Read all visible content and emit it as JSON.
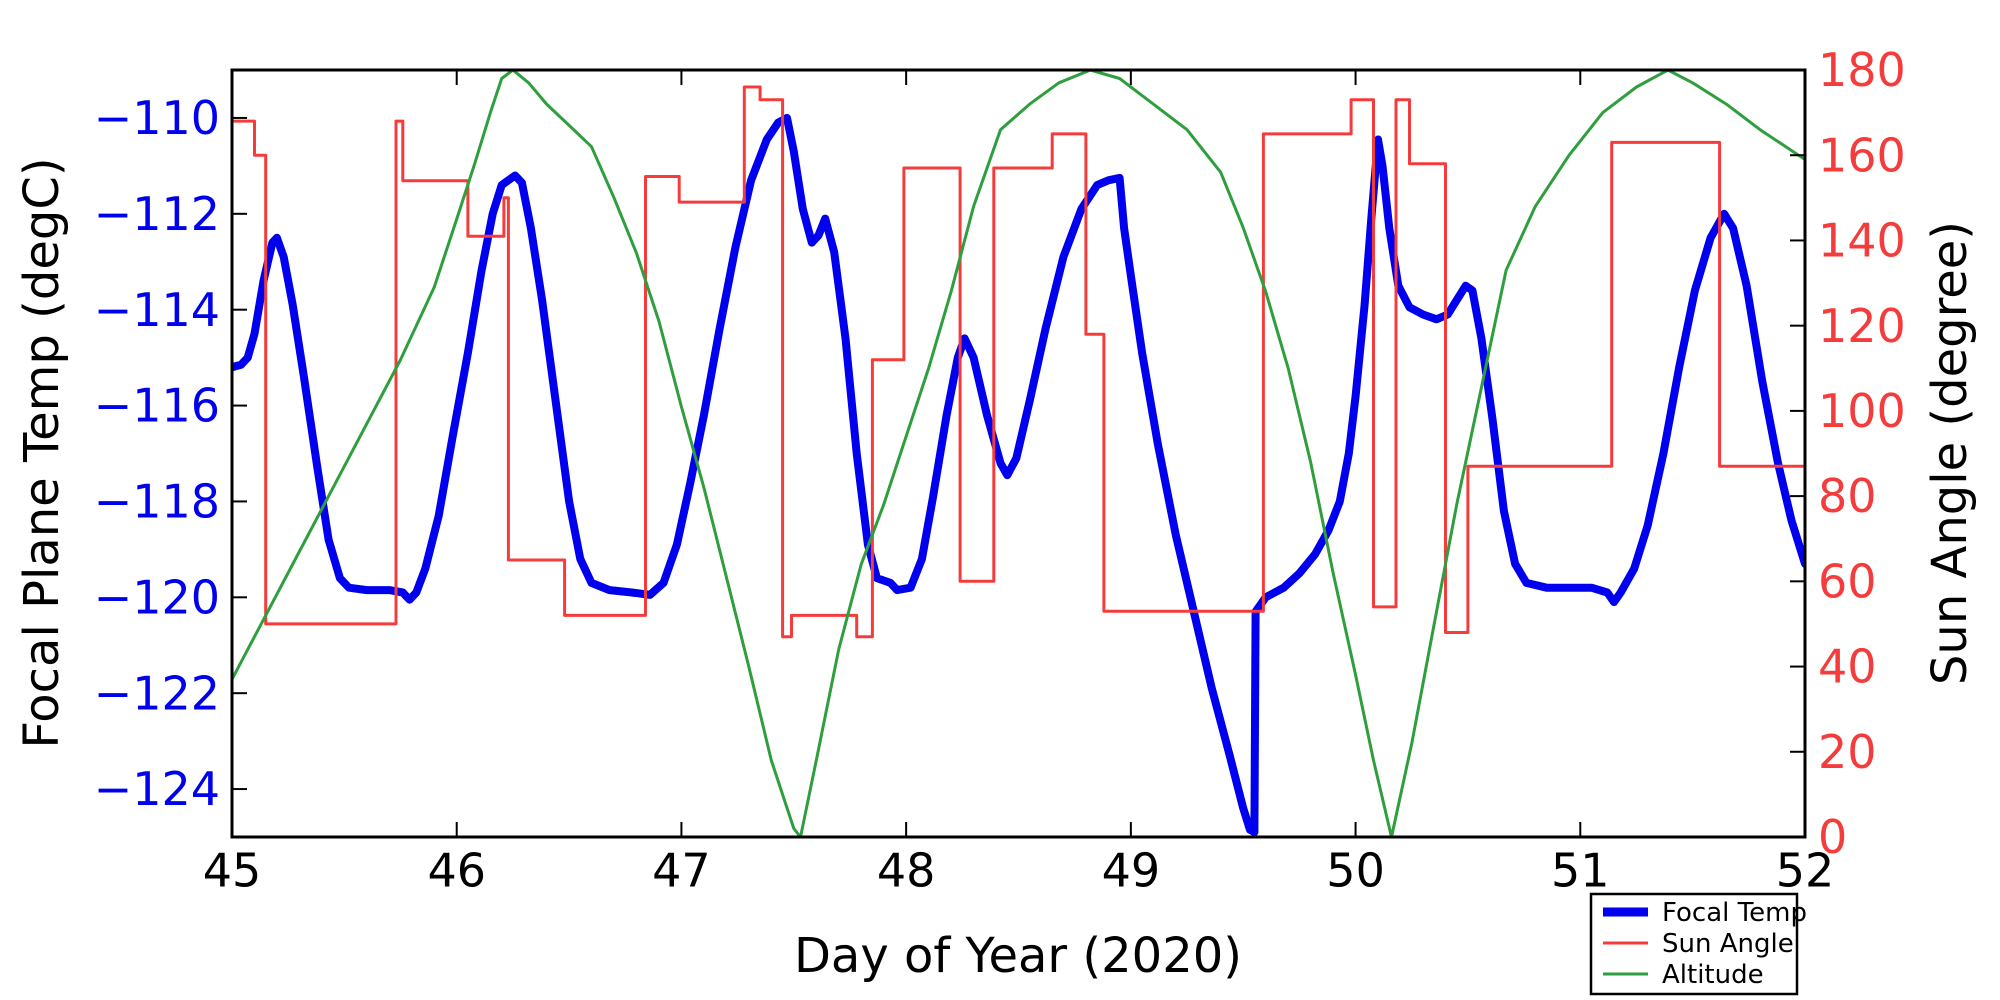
{
  "figure": {
    "background": "#ffffff"
  },
  "colors": {
    "focal_temp": "#0000ee",
    "sun_angle": "#f53c3c",
    "altitude": "#2f9e3e",
    "left_tick_labels": "#0000ee",
    "right_tick_labels": "#f53c3c",
    "axis_text": "#000000",
    "frame": "#000000"
  },
  "legend": {
    "position": "lower-right-outside",
    "border_color": "#000000",
    "background": "#ffffff",
    "items": [
      {
        "label": "Focal Temp",
        "color": "#0000ee",
        "sample_width": 9
      },
      {
        "label": "Sun Angle",
        "color": "#f53c3c",
        "sample_width": 3
      },
      {
        "label": "Altitude",
        "color": "#2f9e3e",
        "sample_width": 3
      }
    ]
  },
  "chart_data": {
    "type": "line",
    "title": "",
    "xlabel": "Day of Year (2020)",
    "ylabel_left": "Focal Plane Temp (degC)",
    "ylabel_right": "Sun Angle (degree)",
    "xlim": [
      45,
      52
    ],
    "ylim_left": [
      -125,
      -109
    ],
    "ylim_right": [
      0,
      180
    ],
    "grid": false,
    "xticks": [
      45,
      46,
      47,
      48,
      49,
      50,
      51,
      52
    ],
    "xtick_labels": [
      "45",
      "46",
      "47",
      "48",
      "49",
      "50",
      "51",
      "52"
    ],
    "yticks_left": [
      -110,
      -112,
      -114,
      -116,
      -118,
      -120,
      -122,
      -124
    ],
    "ytick_left_labels": [
      "−110",
      "−112",
      "−114",
      "−116",
      "−118",
      "−120",
      "−122",
      "−124"
    ],
    "yticks_right": [
      0,
      20,
      40,
      60,
      80,
      100,
      120,
      140,
      160,
      180
    ],
    "ytick_right_labels": [
      "0",
      "20",
      "40",
      "60",
      "80",
      "100",
      "120",
      "140",
      "160",
      "180"
    ],
    "series": [
      {
        "name": "Focal Temp",
        "axis": "left",
        "draw": "line",
        "color": "#0000ee",
        "width": 8,
        "points": [
          [
            45.0,
            -115.2
          ],
          [
            45.04,
            -115.15
          ],
          [
            45.07,
            -115.0
          ],
          [
            45.1,
            -114.5
          ],
          [
            45.14,
            -113.4
          ],
          [
            45.18,
            -112.6
          ],
          [
            45.2,
            -112.5
          ],
          [
            45.23,
            -112.9
          ],
          [
            45.27,
            -113.9
          ],
          [
            45.32,
            -115.4
          ],
          [
            45.38,
            -117.3
          ],
          [
            45.43,
            -118.8
          ],
          [
            45.48,
            -119.6
          ],
          [
            45.52,
            -119.8
          ],
          [
            45.6,
            -119.85
          ],
          [
            45.7,
            -119.85
          ],
          [
            45.76,
            -119.9
          ],
          [
            45.79,
            -120.05
          ],
          [
            45.82,
            -119.9
          ],
          [
            45.86,
            -119.4
          ],
          [
            45.92,
            -118.3
          ],
          [
            45.98,
            -116.7
          ],
          [
            46.05,
            -114.9
          ],
          [
            46.11,
            -113.2
          ],
          [
            46.16,
            -112.0
          ],
          [
            46.2,
            -111.4
          ],
          [
            46.23,
            -111.3
          ],
          [
            46.26,
            -111.2
          ],
          [
            46.29,
            -111.35
          ],
          [
            46.33,
            -112.3
          ],
          [
            46.38,
            -113.8
          ],
          [
            46.44,
            -115.9
          ],
          [
            46.5,
            -118.0
          ],
          [
            46.55,
            -119.2
          ],
          [
            46.6,
            -119.7
          ],
          [
            46.68,
            -119.85
          ],
          [
            46.78,
            -119.9
          ],
          [
            46.86,
            -119.95
          ],
          [
            46.92,
            -119.7
          ],
          [
            46.98,
            -118.9
          ],
          [
            47.04,
            -117.6
          ],
          [
            47.1,
            -116.2
          ],
          [
            47.17,
            -114.4
          ],
          [
            47.24,
            -112.7
          ],
          [
            47.31,
            -111.3
          ],
          [
            47.38,
            -110.45
          ],
          [
            47.43,
            -110.1
          ],
          [
            47.47,
            -110.0
          ],
          [
            47.5,
            -110.7
          ],
          [
            47.54,
            -111.9
          ],
          [
            47.58,
            -112.6
          ],
          [
            47.61,
            -112.45
          ],
          [
            47.64,
            -112.1
          ],
          [
            47.68,
            -112.8
          ],
          [
            47.73,
            -114.6
          ],
          [
            47.78,
            -117.0
          ],
          [
            47.83,
            -118.9
          ],
          [
            47.87,
            -119.6
          ],
          [
            47.93,
            -119.7
          ],
          [
            47.96,
            -119.85
          ],
          [
            48.02,
            -119.8
          ],
          [
            48.07,
            -119.2
          ],
          [
            48.12,
            -117.9
          ],
          [
            48.18,
            -116.2
          ],
          [
            48.23,
            -115.0
          ],
          [
            48.26,
            -114.6
          ],
          [
            48.3,
            -115.0
          ],
          [
            48.36,
            -116.2
          ],
          [
            48.42,
            -117.2
          ],
          [
            48.45,
            -117.45
          ],
          [
            48.49,
            -117.1
          ],
          [
            48.55,
            -115.9
          ],
          [
            48.62,
            -114.4
          ],
          [
            48.7,
            -112.9
          ],
          [
            48.78,
            -111.9
          ],
          [
            48.85,
            -111.4
          ],
          [
            48.9,
            -111.3
          ],
          [
            48.95,
            -111.25
          ],
          [
            48.97,
            -112.3
          ],
          [
            49.0,
            -113.3
          ],
          [
            49.05,
            -114.9
          ],
          [
            49.12,
            -116.8
          ],
          [
            49.2,
            -118.7
          ],
          [
            49.28,
            -120.3
          ],
          [
            49.36,
            -121.9
          ],
          [
            49.44,
            -123.3
          ],
          [
            49.5,
            -124.4
          ],
          [
            49.53,
            -124.85
          ],
          [
            49.55,
            -124.9
          ],
          [
            49.555,
            -120.3
          ],
          [
            49.6,
            -120.0
          ],
          [
            49.68,
            -119.8
          ],
          [
            49.75,
            -119.5
          ],
          [
            49.82,
            -119.1
          ],
          [
            49.88,
            -118.6
          ],
          [
            49.93,
            -118.0
          ],
          [
            49.97,
            -117.0
          ],
          [
            50.0,
            -115.8
          ],
          [
            50.04,
            -113.9
          ],
          [
            50.07,
            -112.1
          ],
          [
            50.1,
            -110.45
          ],
          [
            50.12,
            -111.0
          ],
          [
            50.15,
            -112.3
          ],
          [
            50.19,
            -113.5
          ],
          [
            50.24,
            -113.95
          ],
          [
            50.3,
            -114.1
          ],
          [
            50.36,
            -114.2
          ],
          [
            50.41,
            -114.1
          ],
          [
            50.45,
            -113.8
          ],
          [
            50.49,
            -113.5
          ],
          [
            50.52,
            -113.6
          ],
          [
            50.56,
            -114.6
          ],
          [
            50.61,
            -116.3
          ],
          [
            50.66,
            -118.2
          ],
          [
            50.71,
            -119.3
          ],
          [
            50.76,
            -119.7
          ],
          [
            50.85,
            -119.8
          ],
          [
            50.95,
            -119.8
          ],
          [
            51.05,
            -119.8
          ],
          [
            51.12,
            -119.9
          ],
          [
            51.15,
            -120.1
          ],
          [
            51.18,
            -119.9
          ],
          [
            51.24,
            -119.4
          ],
          [
            51.3,
            -118.5
          ],
          [
            51.37,
            -117.0
          ],
          [
            51.44,
            -115.2
          ],
          [
            51.51,
            -113.6
          ],
          [
            51.58,
            -112.5
          ],
          [
            51.64,
            -112.0
          ],
          [
            51.68,
            -112.3
          ],
          [
            51.74,
            -113.5
          ],
          [
            51.81,
            -115.5
          ],
          [
            51.88,
            -117.2
          ],
          [
            51.94,
            -118.4
          ],
          [
            52.0,
            -119.3
          ]
        ]
      },
      {
        "name": "Sun Angle",
        "axis": "right",
        "draw": "steps",
        "color": "#f53c3c",
        "width": 3,
        "segments": [
          [
            45.0,
            45.1,
            168
          ],
          [
            45.1,
            45.15,
            160
          ],
          [
            45.15,
            45.73,
            50
          ],
          [
            45.73,
            45.76,
            168
          ],
          [
            45.76,
            46.05,
            154
          ],
          [
            46.05,
            46.21,
            141
          ],
          [
            46.21,
            46.23,
            150
          ],
          [
            46.23,
            46.48,
            65
          ],
          [
            46.48,
            46.84,
            52
          ],
          [
            46.84,
            46.99,
            155
          ],
          [
            46.99,
            47.28,
            149
          ],
          [
            47.28,
            47.35,
            176
          ],
          [
            47.35,
            47.45,
            173
          ],
          [
            47.45,
            47.49,
            47
          ],
          [
            47.49,
            47.78,
            52
          ],
          [
            47.78,
            47.85,
            47
          ],
          [
            47.85,
            47.99,
            112
          ],
          [
            47.99,
            48.24,
            157
          ],
          [
            48.24,
            48.39,
            60
          ],
          [
            48.39,
            48.65,
            157
          ],
          [
            48.65,
            48.8,
            165
          ],
          [
            48.8,
            48.88,
            118
          ],
          [
            48.88,
            49.59,
            53
          ],
          [
            49.59,
            49.98,
            165
          ],
          [
            49.98,
            50.08,
            173
          ],
          [
            50.08,
            50.18,
            54
          ],
          [
            50.18,
            50.24,
            173
          ],
          [
            50.24,
            50.4,
            158
          ],
          [
            50.4,
            50.5,
            48
          ],
          [
            50.5,
            51.14,
            87
          ],
          [
            51.14,
            51.62,
            163
          ],
          [
            51.62,
            52.0,
            87
          ]
        ]
      },
      {
        "name": "Altitude",
        "axis": "right",
        "draw": "line",
        "color": "#2f9e3e",
        "width": 3,
        "points": [
          [
            45.0,
            37
          ],
          [
            45.15,
            52
          ],
          [
            45.3,
            67
          ],
          [
            45.45,
            82
          ],
          [
            45.6,
            97
          ],
          [
            45.75,
            112
          ],
          [
            45.9,
            129
          ],
          [
            46.0,
            145
          ],
          [
            46.08,
            158
          ],
          [
            46.15,
            170
          ],
          [
            46.2,
            178
          ],
          [
            46.25,
            180
          ],
          [
            46.32,
            177
          ],
          [
            46.4,
            172
          ],
          [
            46.5,
            167
          ],
          [
            46.6,
            162
          ],
          [
            46.7,
            150
          ],
          [
            46.8,
            137
          ],
          [
            46.9,
            121
          ],
          [
            47.0,
            101
          ],
          [
            47.1,
            82
          ],
          [
            47.2,
            61
          ],
          [
            47.3,
            40
          ],
          [
            47.4,
            18
          ],
          [
            47.5,
            2
          ],
          [
            47.53,
            0
          ],
          [
            47.6,
            18
          ],
          [
            47.7,
            44
          ],
          [
            47.8,
            64
          ],
          [
            47.9,
            78
          ],
          [
            48.0,
            94
          ],
          [
            48.1,
            110
          ],
          [
            48.2,
            128
          ],
          [
            48.3,
            148
          ],
          [
            48.42,
            166
          ],
          [
            48.55,
            172
          ],
          [
            48.68,
            177
          ],
          [
            48.82,
            180
          ],
          [
            48.95,
            178
          ],
          [
            49.1,
            172
          ],
          [
            49.25,
            166
          ],
          [
            49.4,
            156
          ],
          [
            49.5,
            143
          ],
          [
            49.6,
            128
          ],
          [
            49.7,
            110
          ],
          [
            49.8,
            88
          ],
          [
            49.9,
            62
          ],
          [
            50.0,
            38
          ],
          [
            50.08,
            18
          ],
          [
            50.16,
            0
          ],
          [
            50.25,
            22
          ],
          [
            50.35,
            50
          ],
          [
            50.45,
            78
          ],
          [
            50.55,
            103
          ],
          [
            50.67,
            133
          ],
          [
            50.8,
            148
          ],
          [
            50.95,
            160
          ],
          [
            51.1,
            170
          ],
          [
            51.25,
            176
          ],
          [
            51.39,
            180
          ],
          [
            51.5,
            177
          ],
          [
            51.65,
            172
          ],
          [
            51.8,
            166
          ],
          [
            52.0,
            159
          ]
        ]
      }
    ]
  }
}
